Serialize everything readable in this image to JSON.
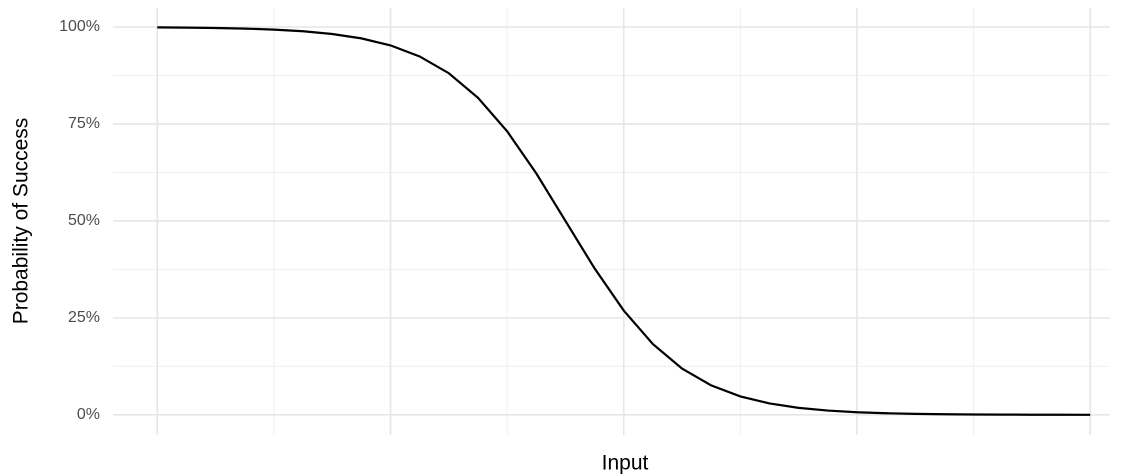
{
  "chart_data": {
    "type": "line",
    "x_label": "Input",
    "y_label": "Probability of Success",
    "x": [
      0,
      0.25,
      0.5,
      0.75,
      1,
      1.25,
      1.5,
      1.75,
      2,
      2.25,
      2.5,
      2.75,
      3,
      3.25,
      3.5,
      3.75,
      4,
      4.25,
      4.5,
      4.75,
      5,
      5.25,
      5.5,
      5.75,
      6,
      6.25,
      6.5,
      6.75,
      7,
      7.25,
      7.5,
      7.75,
      8
    ],
    "series": [
      {
        "color": "#000000",
        "values": [
          99.91,
          99.85,
          99.75,
          99.59,
          99.33,
          98.9,
          98.2,
          97.07,
          95.26,
          92.41,
          88.08,
          81.76,
          73.11,
          62.25,
          50,
          37.75,
          26.89,
          18.24,
          11.92,
          7.59,
          4.74,
          2.93,
          1.8,
          1.1,
          0.67,
          0.41,
          0.25,
          0.15,
          0.09,
          0.06,
          0.03,
          0.02,
          0.01
        ]
      }
    ],
    "xlim": [
      -0.38,
      8.17
    ],
    "xticks": [
      0,
      1,
      2,
      3,
      4,
      5,
      6,
      7,
      8
    ],
    "ylim": [
      -5.2,
      104.9
    ],
    "yticks": [
      {
        "value": 0,
        "label": "0%"
      },
      {
        "value": 25,
        "label": "25%"
      },
      {
        "value": 50,
        "label": "50%"
      },
      {
        "value": 75,
        "label": "75%"
      },
      {
        "value": 100,
        "label": "100%"
      }
    ],
    "grid": true
  }
}
